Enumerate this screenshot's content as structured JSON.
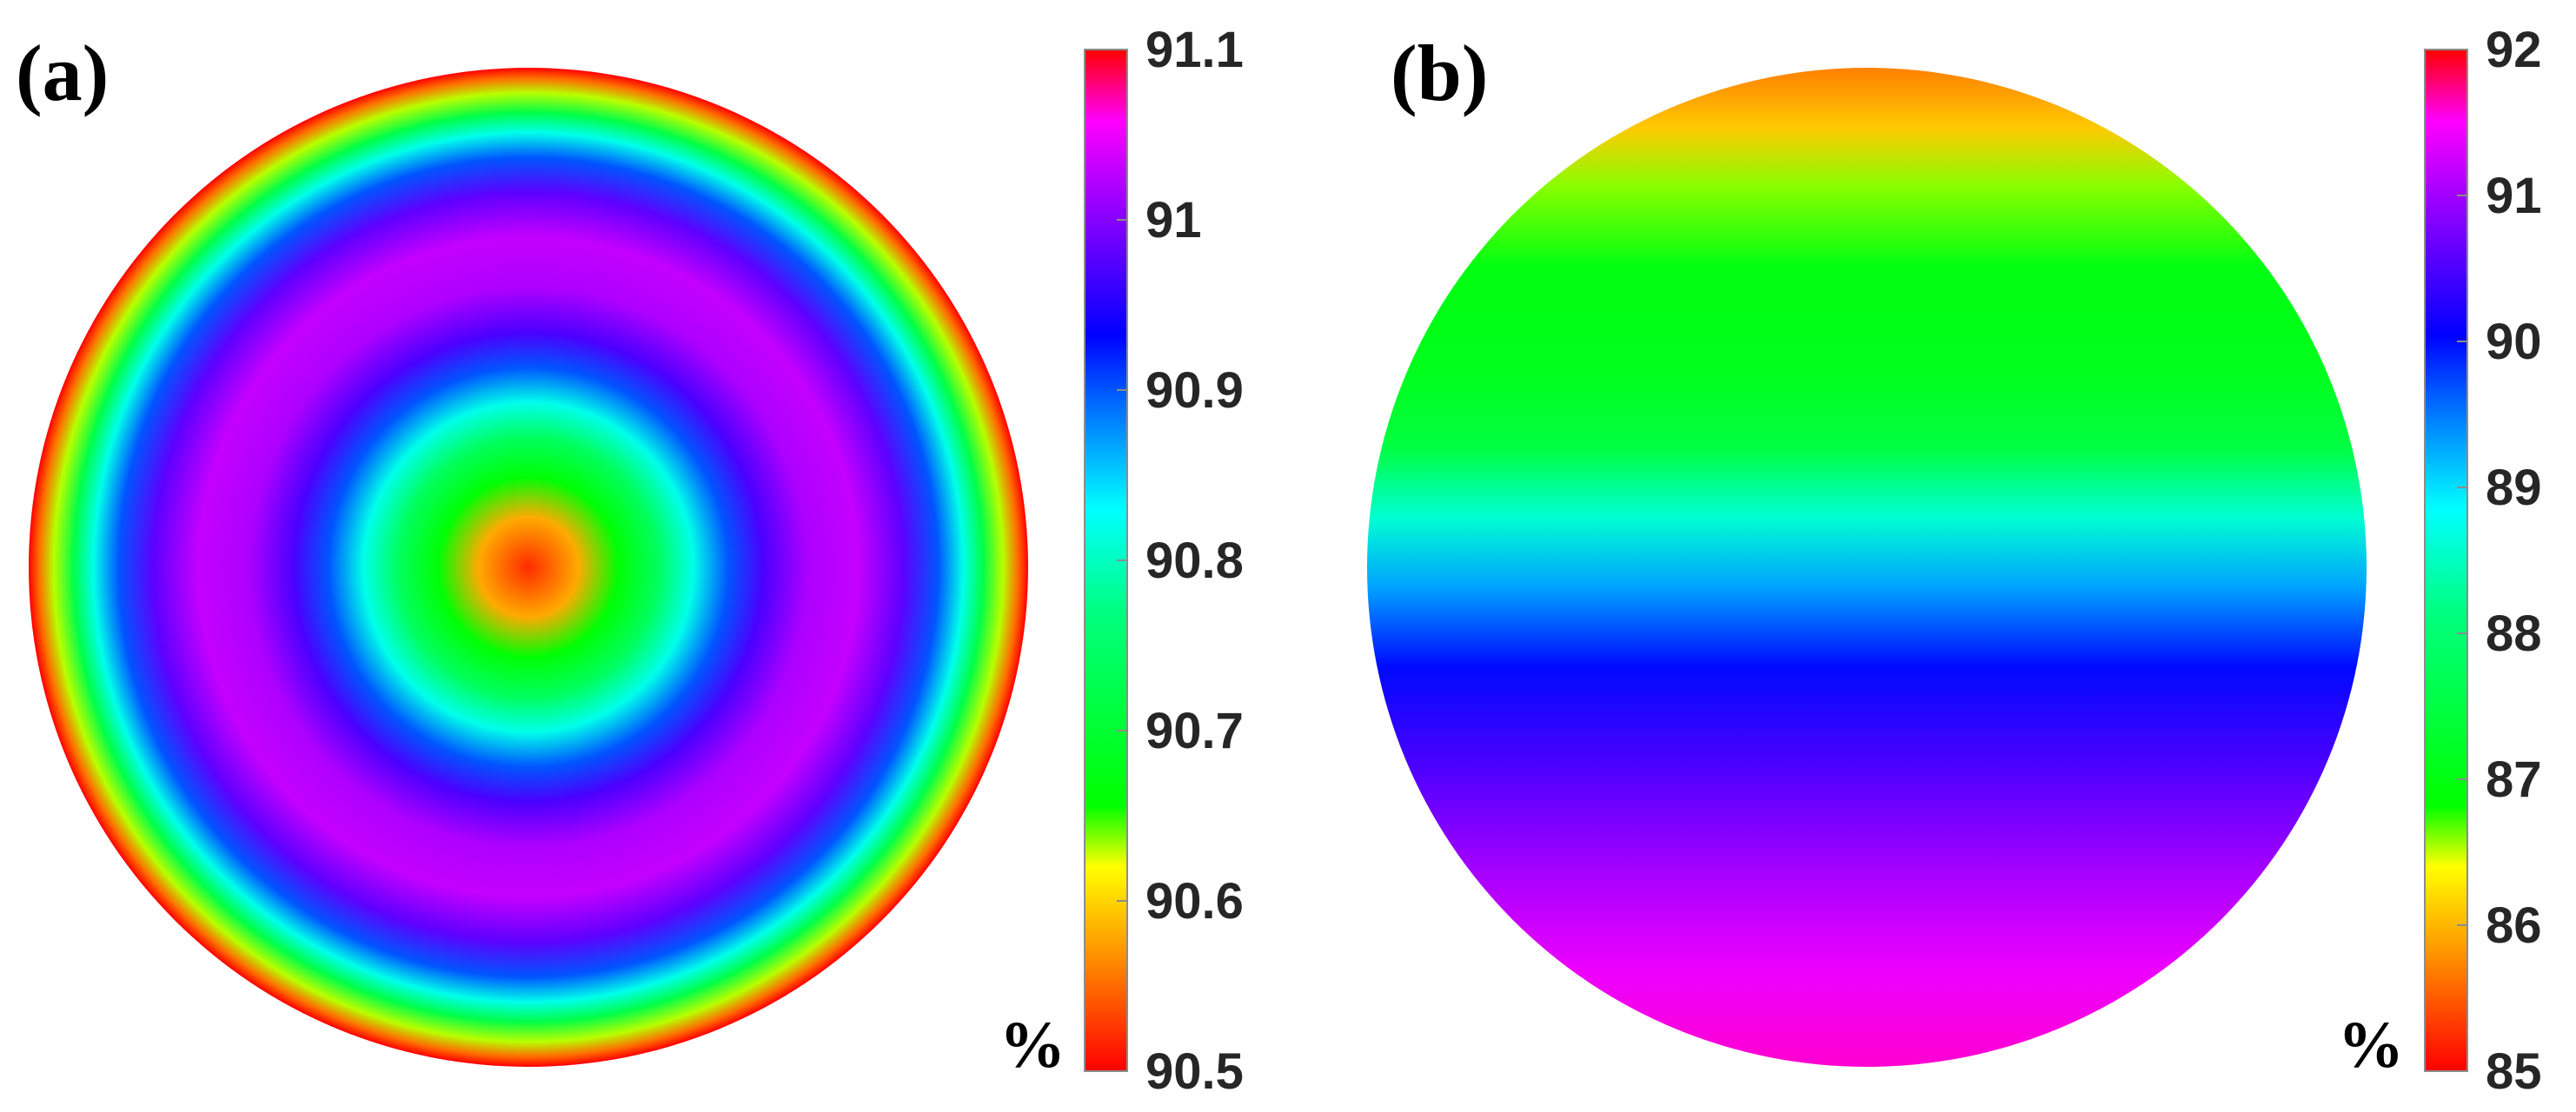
{
  "chart_data": [
    {
      "type": "heatmap",
      "panel_label": "(a)",
      "pattern": "concentric rings, radially symmetric",
      "radial_profile": [
        {
          "r": 0.0,
          "value": 90.52
        },
        {
          "r": 0.1,
          "value": 90.58
        },
        {
          "r": 0.18,
          "value": 90.66
        },
        {
          "r": 0.26,
          "value": 90.74
        },
        {
          "r": 0.33,
          "value": 90.82
        },
        {
          "r": 0.4,
          "value": 90.9
        },
        {
          "r": 0.47,
          "value": 90.97
        },
        {
          "r": 0.56,
          "value": 91.02
        },
        {
          "r": 0.66,
          "value": 91.03
        },
        {
          "r": 0.75,
          "value": 90.98
        },
        {
          "r": 0.82,
          "value": 90.9
        },
        {
          "r": 0.87,
          "value": 90.82
        },
        {
          "r": 0.91,
          "value": 90.72
        },
        {
          "r": 0.95,
          "value": 90.63
        },
        {
          "r": 0.98,
          "value": 90.55
        },
        {
          "r": 1.0,
          "value": 90.5
        }
      ],
      "colorbar": {
        "range": [
          90.5,
          91.1
        ],
        "ticks": [
          "90.5",
          "90.6",
          "90.7",
          "90.8",
          "90.9",
          "91",
          "91.1"
        ],
        "unit": "%"
      }
    },
    {
      "type": "heatmap",
      "panel_label": "(b)",
      "pattern": "horizontal bands varying from top to bottom",
      "vertical_profile": [
        {
          "y": 0.0,
          "value": 85.7
        },
        {
          "y": 0.06,
          "value": 86.1
        },
        {
          "y": 0.12,
          "value": 86.6
        },
        {
          "y": 0.2,
          "value": 87.0
        },
        {
          "y": 0.3,
          "value": 87.1
        },
        {
          "y": 0.38,
          "value": 87.5
        },
        {
          "y": 0.45,
          "value": 88.6
        },
        {
          "y": 0.52,
          "value": 89.3
        },
        {
          "y": 0.6,
          "value": 90.0
        },
        {
          "y": 0.7,
          "value": 90.5
        },
        {
          "y": 0.8,
          "value": 91.0
        },
        {
          "y": 0.9,
          "value": 91.4
        },
        {
          "y": 1.0,
          "value": 91.6
        }
      ],
      "colorbar": {
        "range": [
          85,
          92
        ],
        "ticks": [
          "85",
          "86",
          "87",
          "88",
          "89",
          "90",
          "91",
          "92"
        ],
        "unit": "%"
      }
    }
  ],
  "colormap_stops": [
    {
      "t": 0.0,
      "color": "#ff0000"
    },
    {
      "t": 0.1,
      "color": "#ff8000"
    },
    {
      "t": 0.2,
      "color": "#ffff00"
    },
    {
      "t": 0.26,
      "color": "#00ff00"
    },
    {
      "t": 0.45,
      "color": "#00ff80"
    },
    {
      "t": 0.55,
      "color": "#00ffff"
    },
    {
      "t": 0.66,
      "color": "#0060ff"
    },
    {
      "t": 0.72,
      "color": "#0000ff"
    },
    {
      "t": 0.85,
      "color": "#9900ff"
    },
    {
      "t": 0.93,
      "color": "#ff00ff"
    },
    {
      "t": 1.0,
      "color": "#ff0000"
    }
  ]
}
